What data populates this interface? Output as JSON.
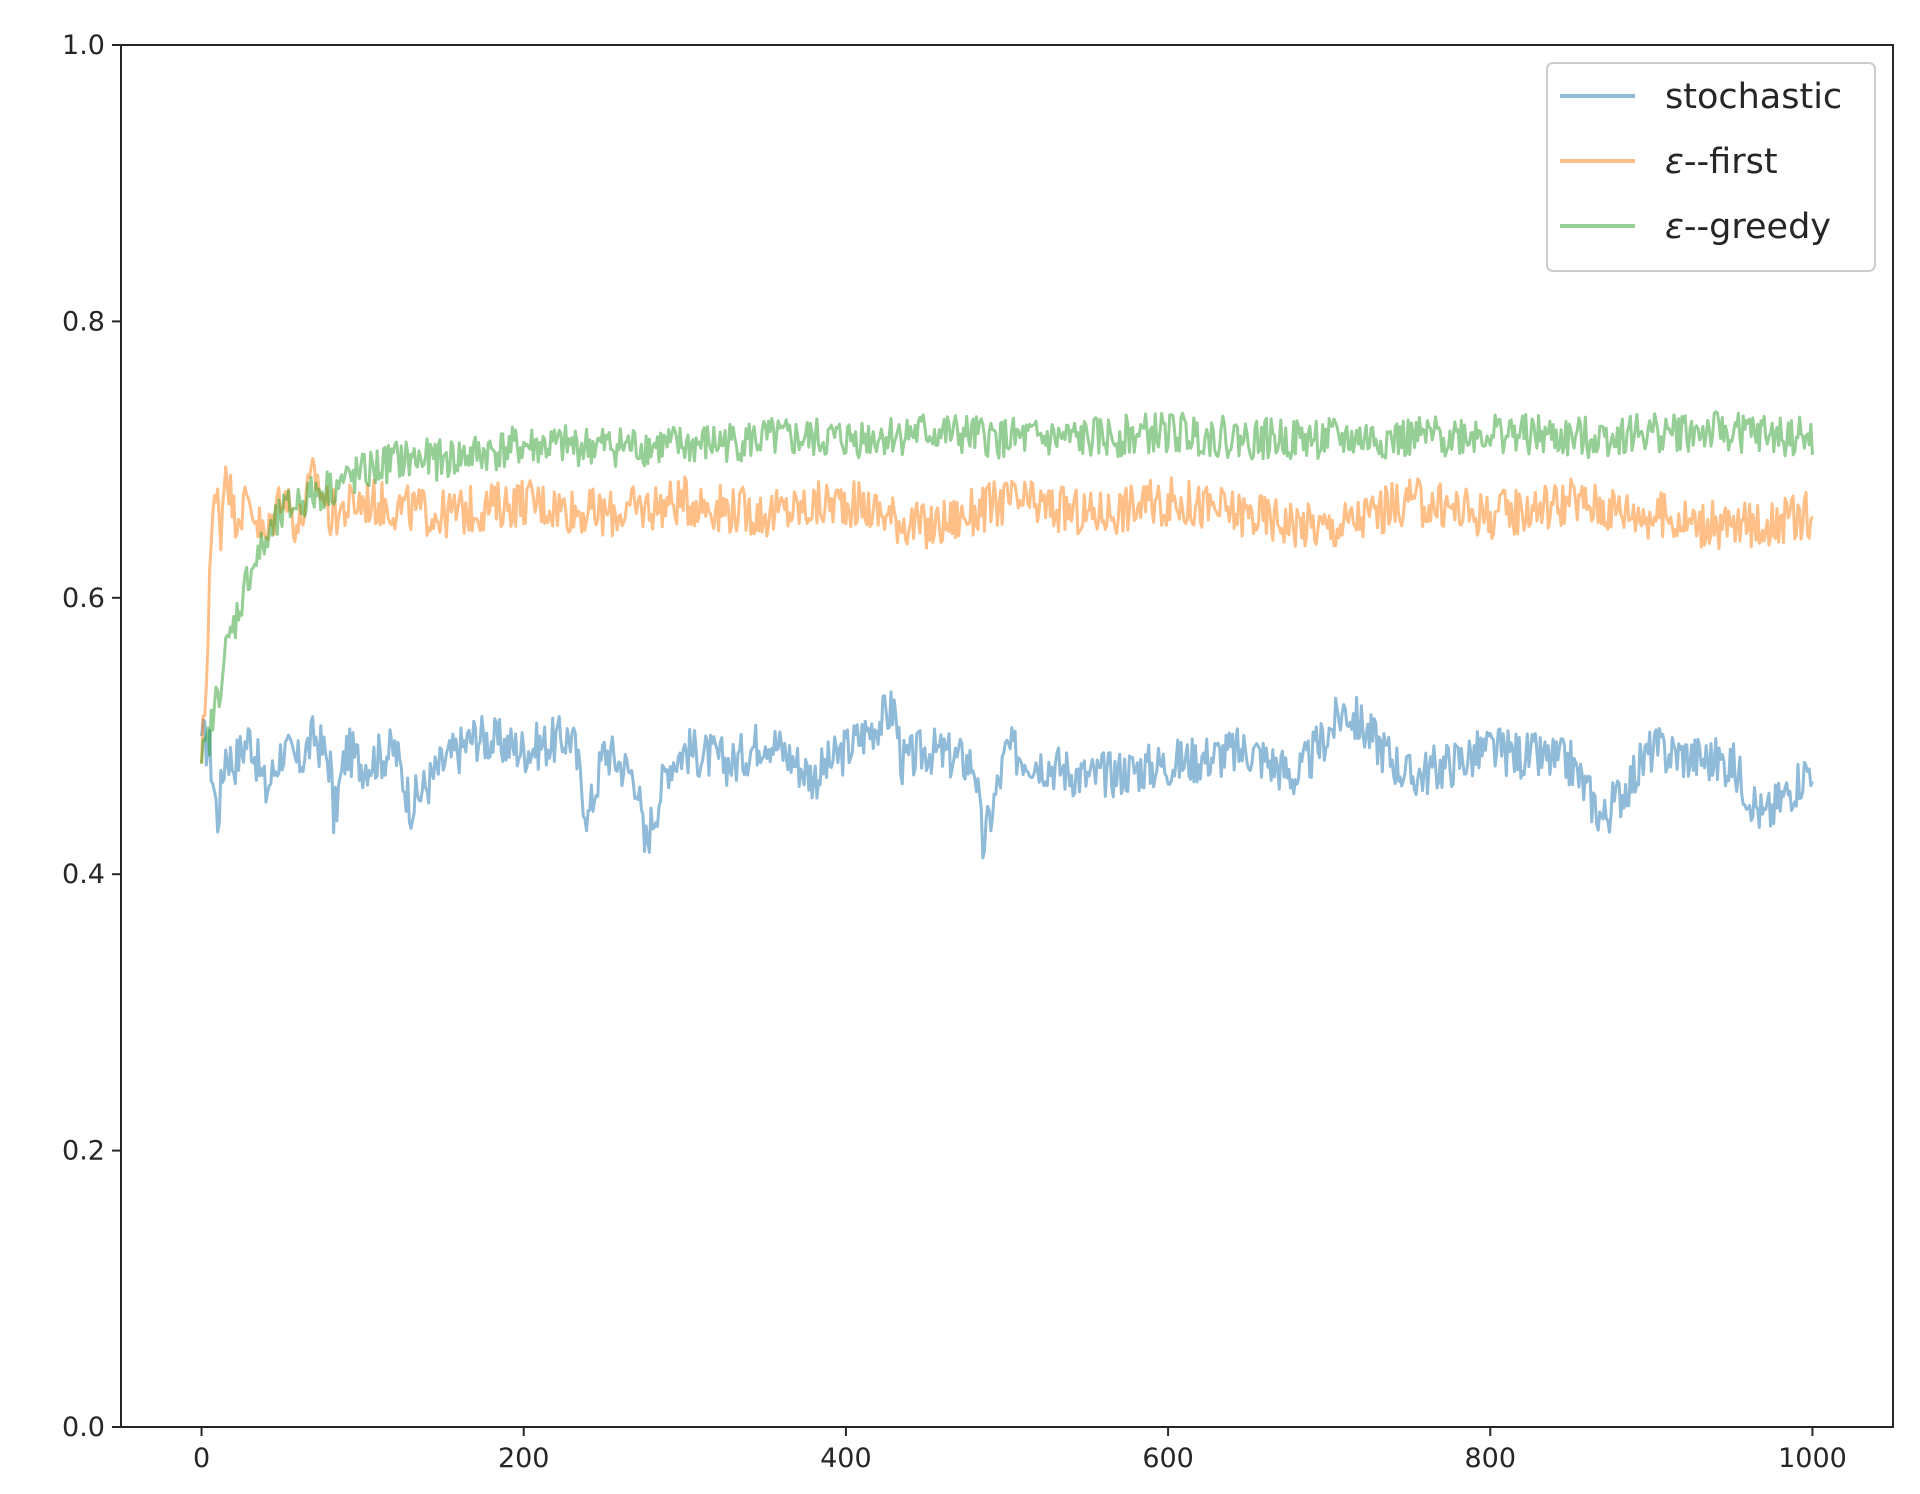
{
  "chart_data": {
    "type": "line",
    "title": "",
    "xlabel": "",
    "ylabel": "",
    "xlim": [
      -50,
      1050
    ],
    "ylim": [
      0.0,
      1.0
    ],
    "x_ticks": [
      0,
      200,
      400,
      600,
      800,
      1000
    ],
    "x_tick_labels": [
      "0",
      "200",
      "400",
      "600",
      "800",
      "1000"
    ],
    "y_ticks": [
      0.0,
      0.2,
      0.4,
      0.6,
      0.8,
      1.0
    ],
    "y_tick_labels": [
      "0.0",
      "0.2",
      "0.4",
      "0.6",
      "0.8",
      "1.0"
    ],
    "grid": false,
    "legend_position": "top-right",
    "series": [
      {
        "name": "stochastic",
        "color": "#1f77b4",
        "x": [
          0,
          5,
          10,
          15,
          20,
          30,
          40,
          50,
          60,
          70,
          80,
          82,
          90,
          100,
          120,
          130,
          150,
          170,
          200,
          230,
          240,
          250,
          270,
          275,
          290,
          300,
          330,
          350,
          380,
          400,
          430,
          435,
          450,
          480,
          485,
          500,
          550,
          600,
          650,
          680,
          710,
          750,
          800,
          850,
          870,
          900,
          950,
          970,
          1000
        ],
        "values": [
          0.5,
          0.49,
          0.44,
          0.49,
          0.48,
          0.5,
          0.46,
          0.49,
          0.48,
          0.5,
          0.48,
          0.44,
          0.49,
          0.48,
          0.49,
          0.45,
          0.48,
          0.5,
          0.49,
          0.5,
          0.44,
          0.49,
          0.47,
          0.42,
          0.48,
          0.49,
          0.48,
          0.5,
          0.47,
          0.49,
          0.52,
          0.48,
          0.49,
          0.48,
          0.42,
          0.49,
          0.47,
          0.48,
          0.49,
          0.47,
          0.52,
          0.47,
          0.49,
          0.48,
          0.44,
          0.49,
          0.48,
          0.44,
          0.48
        ]
      },
      {
        "name": "ε--first",
        "color": "#ff7f0e",
        "x": [
          0,
          3,
          5,
          7,
          10,
          12,
          15,
          20,
          30,
          40,
          50,
          60,
          70,
          80,
          100,
          150,
          200,
          250,
          300,
          350,
          400,
          450,
          500,
          550,
          600,
          650,
          700,
          750,
          800,
          850,
          900,
          950,
          1000
        ],
        "values": [
          0.48,
          0.54,
          0.62,
          0.66,
          0.67,
          0.65,
          0.7,
          0.66,
          0.67,
          0.64,
          0.68,
          0.65,
          0.69,
          0.66,
          0.67,
          0.66,
          0.67,
          0.66,
          0.67,
          0.66,
          0.67,
          0.65,
          0.67,
          0.66,
          0.67,
          0.66,
          0.65,
          0.67,
          0.66,
          0.67,
          0.66,
          0.65,
          0.66
        ]
      },
      {
        "name": "ε--greedy",
        "color": "#2ca02c",
        "x": [
          0,
          5,
          10,
          15,
          20,
          30,
          40,
          50,
          60,
          80,
          100,
          120,
          150,
          200,
          250,
          300,
          350,
          400,
          450,
          500,
          550,
          600,
          650,
          700,
          750,
          800,
          850,
          900,
          950,
          1000
        ],
        "values": [
          0.48,
          0.5,
          0.53,
          0.56,
          0.58,
          0.62,
          0.64,
          0.66,
          0.67,
          0.68,
          0.69,
          0.7,
          0.7,
          0.71,
          0.71,
          0.71,
          0.715,
          0.715,
          0.72,
          0.715,
          0.715,
          0.72,
          0.715,
          0.715,
          0.715,
          0.72,
          0.715,
          0.72,
          0.72,
          0.715
        ]
      }
    ]
  }
}
